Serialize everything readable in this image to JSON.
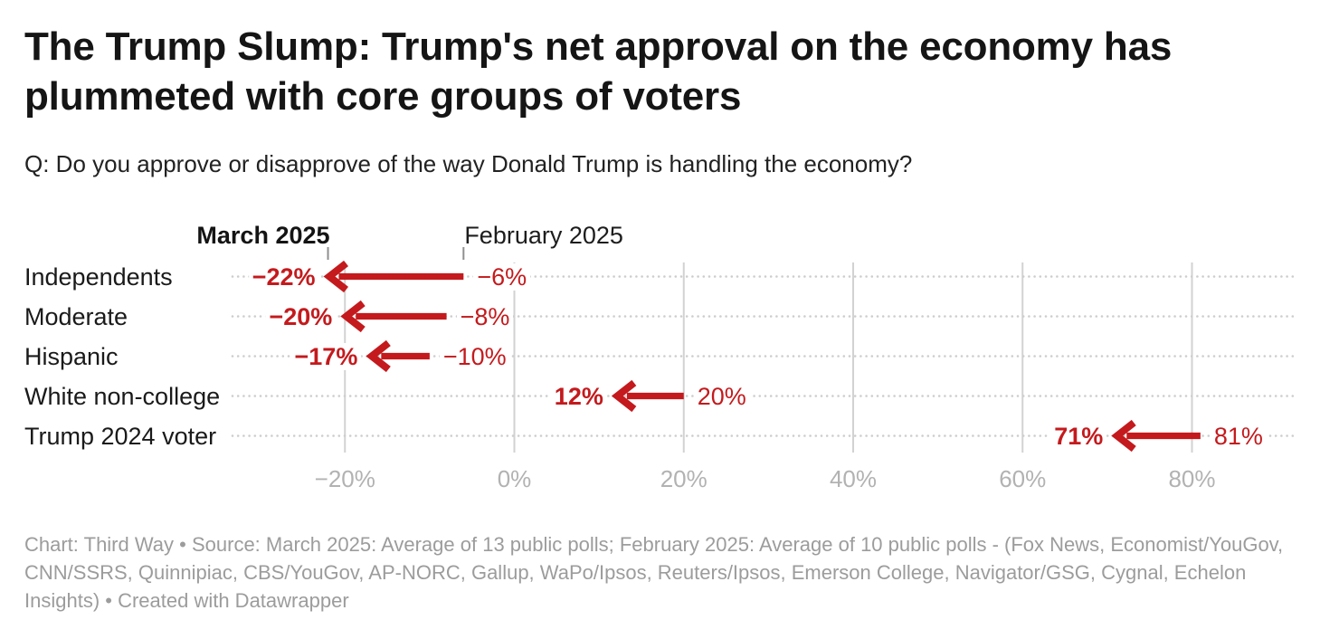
{
  "chart_data": {
    "type": "arrow",
    "title": "The Trump Slump: Trump's net approval on the economy has plummeted with core groups of voters",
    "subtitle": "Q: Do you approve or disapprove of the way Donald Trump is handling the economy?",
    "categories": [
      "Independents",
      "Moderate",
      "Hispanic",
      "White non-college",
      "Trump 2024 voter"
    ],
    "series": [
      {
        "name": "March 2025",
        "values": [
          -22,
          -20,
          -17,
          12,
          71
        ],
        "labels": [
          "−22%",
          "−20%",
          "−17%",
          "12%",
          "71%"
        ],
        "emphasis": "bold"
      },
      {
        "name": "February 2025",
        "values": [
          -6,
          -8,
          -10,
          20,
          81
        ],
        "labels": [
          "−6%",
          "−8%",
          "−10%",
          "20%",
          "81%"
        ],
        "emphasis": "regular"
      }
    ],
    "arrow_direction": "from February 2025 value to March 2025 value (all pointing left / decreasing)",
    "x_axis": {
      "tick_values": [
        -20,
        0,
        20,
        40,
        60,
        80
      ],
      "tick_labels": [
        "−20%",
        "0%",
        "20%",
        "40%",
        "60%",
        "80%"
      ],
      "range": [
        -33,
        92
      ],
      "unit": "%"
    },
    "grid": true,
    "legend_position": "column headers above first row",
    "colors": {
      "arrow": "#c41a1d",
      "value_labels": "#c41a1d",
      "row_labels": "#1a1a1a",
      "gridline": "#d2d2d2",
      "dotted_leader": "#cdcdcd",
      "axis_labels": "#b2b2b2",
      "header_tick": "#8f8f8f"
    }
  },
  "footer": {
    "text": "Chart: Third Way • Source: March 2025: Average of 13 public polls; February 2025: Average of 10 public polls - (Fox News, Economist/YouGov, CNN/SSRS, Quinnipiac, CBS/YouGov, AP-NORC, Gallup, WaPo/Ipsos, Reuters/Ipsos, Emerson College, Navigator/GSG, Cygnal, Echelon Insights) • Created with Datawrapper"
  }
}
